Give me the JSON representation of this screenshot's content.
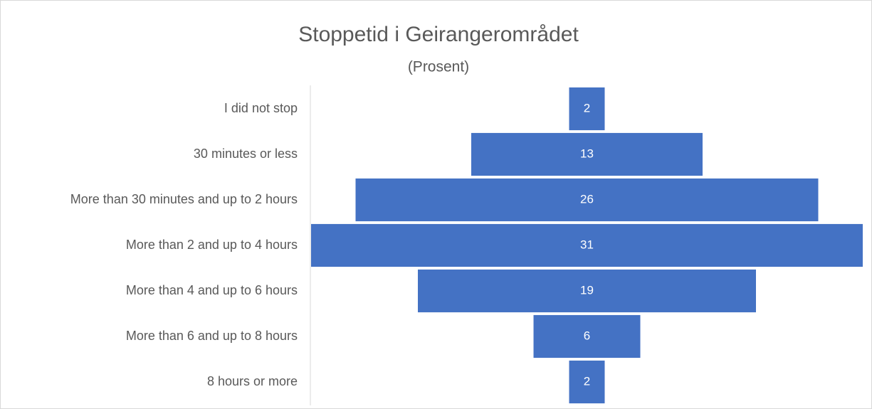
{
  "chart_data": {
    "type": "funnel",
    "title": "Stoppetid i Geirangerområdet",
    "subtitle": "(Prosent)",
    "categories": [
      "I did not stop",
      "30 minutes or less",
      "More than 30 minutes and up to 2 hours",
      "More than 2 and up to 4 hours",
      "More than 4 and up to 6 hours",
      "More than 6 and up to 8 hours",
      "8 hours or more"
    ],
    "values": [
      2,
      13,
      26,
      31,
      19,
      6,
      2
    ],
    "color": "#4472c4"
  }
}
